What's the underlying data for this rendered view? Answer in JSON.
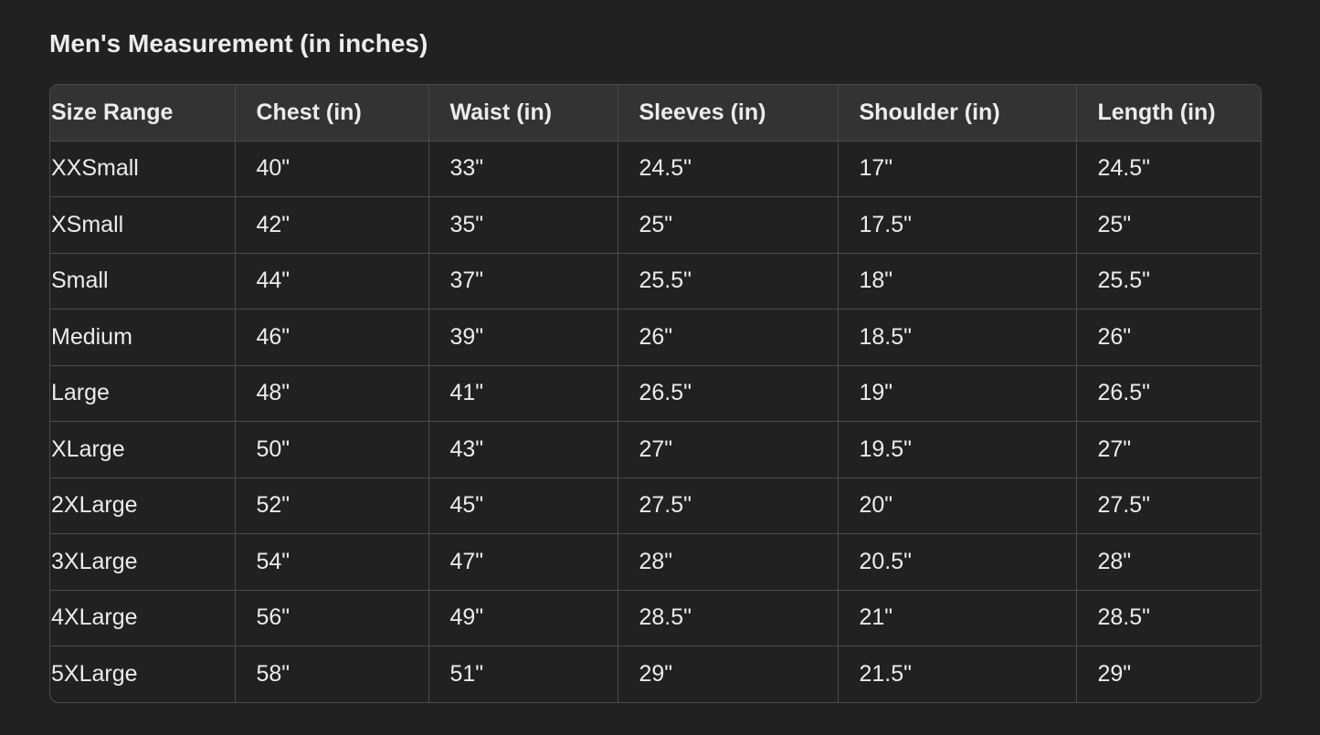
{
  "title": "Men's Measurement (in inches)",
  "table": {
    "headers": [
      "Size Range",
      "Chest (in)",
      "Waist (in)",
      "Sleeves (in)",
      "Shoulder (in)",
      "Length (in)"
    ],
    "rows": [
      [
        "XXSmall",
        "40\"",
        "33\"",
        "24.5\"",
        "17\"",
        "24.5\""
      ],
      [
        "XSmall",
        "42\"",
        "35\"",
        "25\"",
        "17.5\"",
        "25\""
      ],
      [
        "Small",
        "44\"",
        "37\"",
        "25.5\"",
        "18\"",
        "25.5\""
      ],
      [
        "Medium",
        "46\"",
        "39\"",
        "26\"",
        "18.5\"",
        "26\""
      ],
      [
        "Large",
        "48\"",
        "41\"",
        "26.5\"",
        "19\"",
        "26.5\""
      ],
      [
        "XLarge",
        "50\"",
        "43\"",
        "27\"",
        "19.5\"",
        "27\""
      ],
      [
        "2XLarge",
        "52\"",
        "45\"",
        "27.5\"",
        "20\"",
        "27.5\""
      ],
      [
        "3XLarge",
        "54\"",
        "47\"",
        "28\"",
        "20.5\"",
        "28\""
      ],
      [
        "4XLarge",
        "56\"",
        "49\"",
        "28.5\"",
        "21\"",
        "28.5\""
      ],
      [
        "5XLarge",
        "58\"",
        "51\"",
        "29\"",
        "21.5\"",
        "29\""
      ]
    ]
  }
}
